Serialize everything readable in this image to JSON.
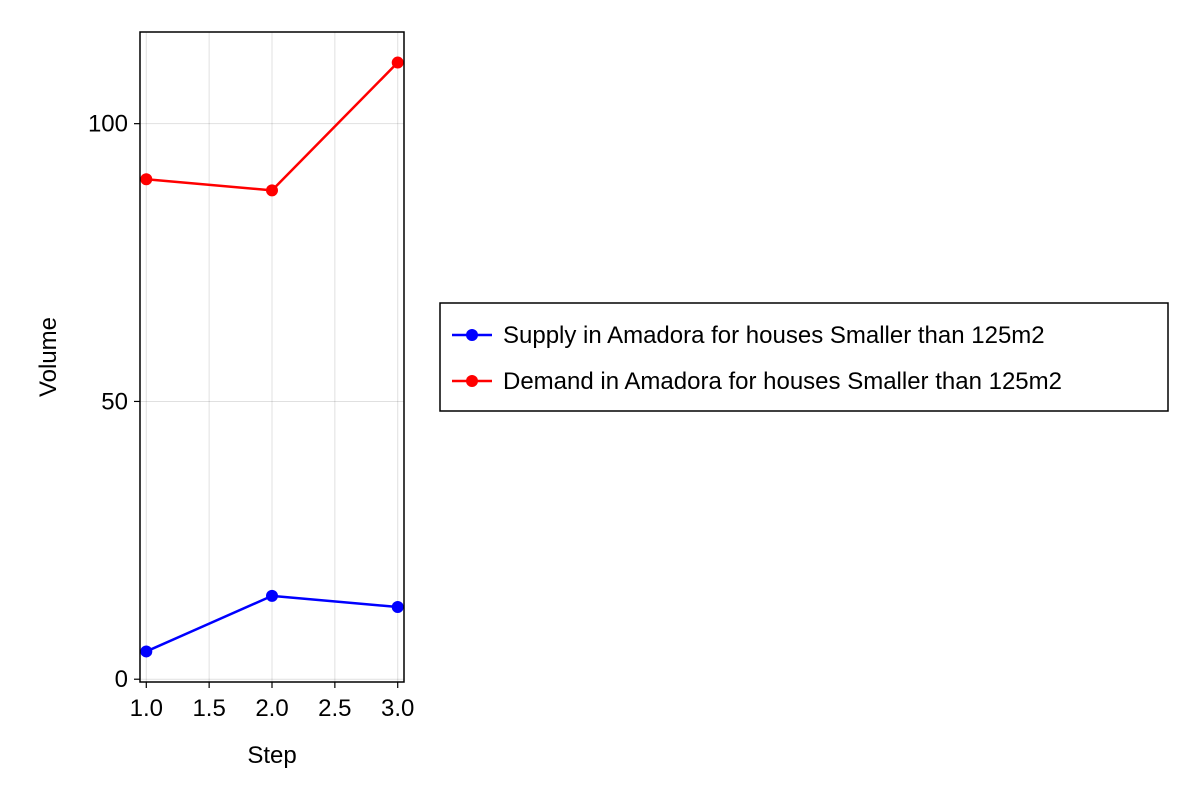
{
  "chart_data": {
    "type": "line",
    "title": "",
    "xlabel": "Step",
    "ylabel": "Volume",
    "x": [
      1.0,
      2.0,
      3.0
    ],
    "xlim": [
      0.95,
      3.05
    ],
    "ylim": [
      -0.5,
      116.5
    ],
    "x_ticks": [
      1.0,
      1.5,
      2.0,
      2.5,
      3.0
    ],
    "x_tick_labels": [
      "1.0",
      "1.5",
      "2.0",
      "2.5",
      "3.0"
    ],
    "y_ticks": [
      0,
      50,
      100
    ],
    "y_tick_labels": [
      "0",
      "50",
      "100"
    ],
    "grid": true,
    "legend_position": "right",
    "series": [
      {
        "name": "Supply in Amadora for houses Smaller than 125m2",
        "color": "#0000ff",
        "marker": "circle",
        "values": [
          5,
          15,
          13
        ]
      },
      {
        "name": "Demand in Amadora for houses Smaller than 125m2",
        "color": "#ff0000",
        "marker": "circle",
        "values": [
          90,
          88,
          111
        ]
      }
    ]
  }
}
